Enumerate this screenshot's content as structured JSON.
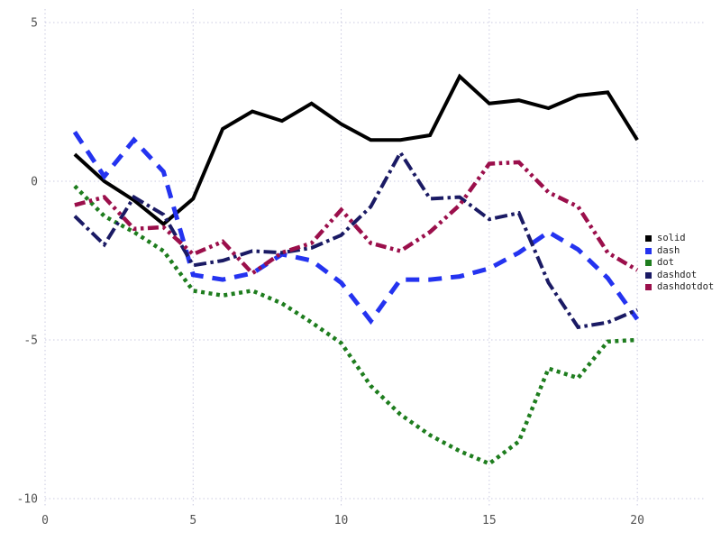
{
  "chart_data": {
    "type": "line",
    "title": "",
    "xlabel": "",
    "ylabel": "",
    "x_ticks": [
      0,
      5,
      10,
      15,
      20
    ],
    "y_ticks": [
      -10,
      -5,
      0,
      5
    ],
    "xlim": [
      0,
      20.6
    ],
    "ylim": [
      -10.6,
      5.35
    ],
    "grid": "dotted",
    "legend_position": "right",
    "x": [
      1,
      2,
      3,
      4,
      5,
      6,
      7,
      8,
      9,
      10,
      11,
      12,
      13,
      14,
      15,
      16,
      17,
      18,
      19,
      20
    ],
    "series": [
      {
        "name": "solid",
        "linestyle": "solid",
        "color": "#000000",
        "values": [
          0.85,
          0.0,
          -0.6,
          -1.35,
          -0.55,
          1.65,
          2.2,
          1.9,
          2.45,
          1.8,
          1.3,
          1.3,
          1.45,
          3.3,
          2.45,
          2.55,
          2.3,
          2.7,
          2.8,
          1.3
        ]
      },
      {
        "name": "dash",
        "linestyle": "dash",
        "color": "#2433F0",
        "values": [
          1.55,
          0.15,
          1.3,
          0.3,
          -2.95,
          -3.1,
          -2.9,
          -2.3,
          -2.5,
          -3.2,
          -4.4,
          -3.1,
          -3.1,
          -3.0,
          -2.75,
          -2.25,
          -1.6,
          -2.15,
          -3.05,
          -4.35
        ]
      },
      {
        "name": "dot",
        "linestyle": "dot",
        "color": "#1E7D1E",
        "values": [
          -0.15,
          -1.1,
          -1.6,
          -2.2,
          -3.45,
          -3.6,
          -3.45,
          -3.85,
          -4.45,
          -5.1,
          -6.45,
          -7.35,
          -8.0,
          -8.5,
          -8.9,
          -8.2,
          -5.9,
          -6.2,
          -5.05,
          -5.0
        ]
      },
      {
        "name": "dashdot",
        "linestyle": "dashdot",
        "color": "#1A1A64",
        "values": [
          -1.1,
          -2.0,
          -0.5,
          -1.05,
          -2.65,
          -2.5,
          -2.2,
          -2.25,
          -2.1,
          -1.7,
          -0.8,
          0.9,
          -0.55,
          -0.5,
          -1.2,
          -1.0,
          -3.2,
          -4.6,
          -4.45,
          -4.05
        ]
      },
      {
        "name": "dashdotdot",
        "linestyle": "dashdotdot",
        "color": "#9B0F4B",
        "values": [
          -0.75,
          -0.5,
          -1.5,
          -1.45,
          -2.3,
          -1.9,
          -2.9,
          -2.25,
          -1.95,
          -0.9,
          -1.95,
          -2.2,
          -1.6,
          -0.75,
          0.55,
          0.6,
          -0.35,
          -0.8,
          -2.25,
          -2.8
        ]
      }
    ]
  },
  "legend": {
    "entries": [
      {
        "label": "solid",
        "color": "#000000"
      },
      {
        "label": "dash",
        "color": "#2433F0"
      },
      {
        "label": "dot",
        "color": "#1E7D1E"
      },
      {
        "label": "dashdot",
        "color": "#1A1A64"
      },
      {
        "label": "dashdotdot",
        "color": "#9B0F4B"
      }
    ]
  },
  "axes": {
    "tick_color": "#545454",
    "grid_color": "#C9C9E0"
  }
}
